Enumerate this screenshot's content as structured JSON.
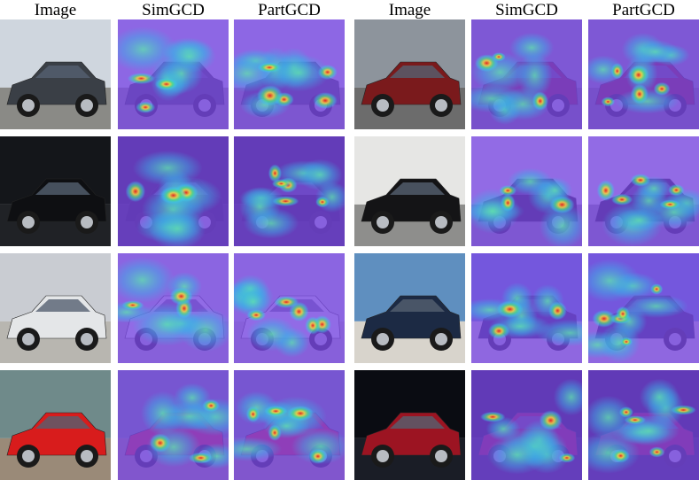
{
  "headers": [
    "Image",
    "SimGCD",
    "PartGCD",
    "Image",
    "SimGCD",
    "PartGCD"
  ]
}
